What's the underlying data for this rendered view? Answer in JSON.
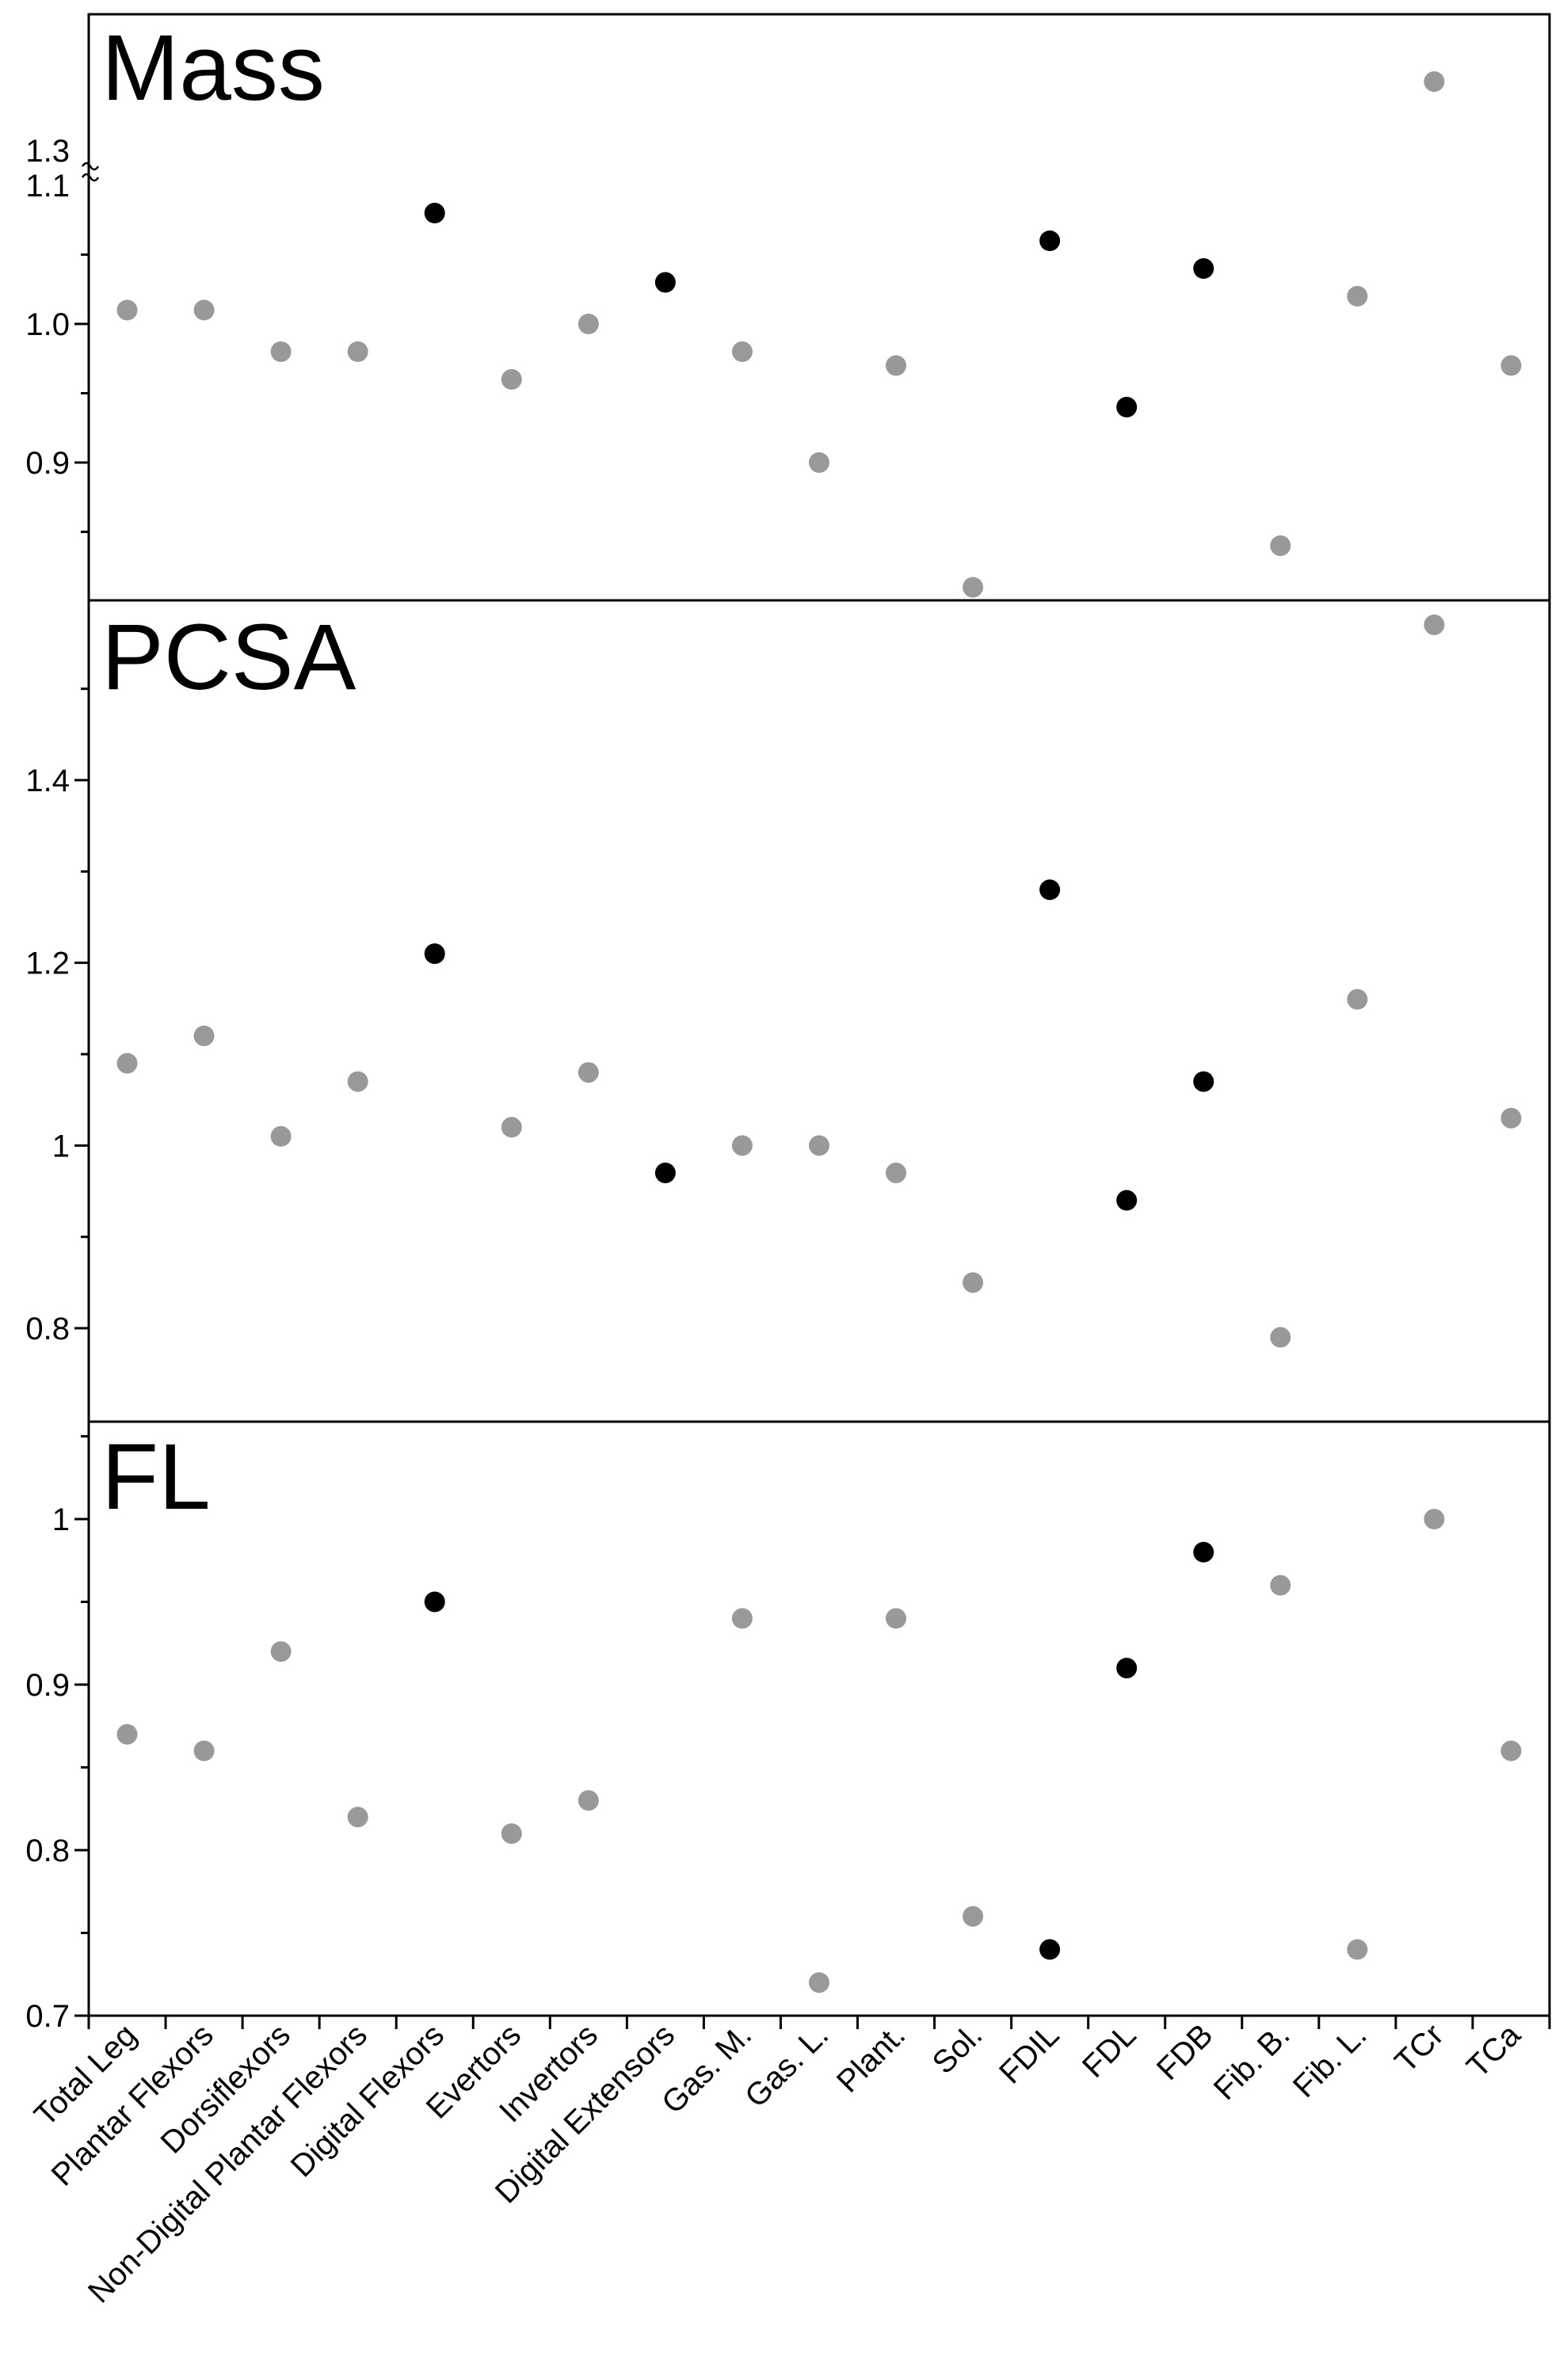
{
  "chart_data": {
    "type": "scatter",
    "categories": [
      "Total Leg",
      "Plantar Flexors",
      "Dorsiflexors",
      "Non-Digital Plantar Flexors",
      "Digital Flexors",
      "Evertors",
      "Invertors",
      "Digital Extensors",
      "Gas. M.",
      "Gas. L.",
      "Plant.",
      "Sol.",
      "FDIL",
      "FDL",
      "FDB",
      "Fib. B.",
      "Fib. L.",
      "TCr",
      "TCa"
    ],
    "colors": {
      "gray": "#999999",
      "black": "#000000"
    },
    "panels": [
      {
        "title": "Mass",
        "axis_break": {
          "lower": "1.1",
          "upper": "1.3"
        },
        "ylim": [
          0.81,
          1.1
        ],
        "ytick_labels": [
          "0.9",
          "1.0",
          "1.1",
          "1.3"
        ],
        "values": [
          1.01,
          1.01,
          0.98,
          0.98,
          1.08,
          0.96,
          1.0,
          1.03,
          0.98,
          0.9,
          0.97,
          0.81,
          1.06,
          0.94,
          1.04,
          0.84,
          1.02,
          1.35,
          0.97
        ],
        "highlight": [
          false,
          false,
          false,
          false,
          true,
          false,
          false,
          true,
          false,
          false,
          false,
          false,
          true,
          true,
          true,
          false,
          false,
          false,
          false
        ]
      },
      {
        "title": "PCSA",
        "ylim": [
          0.7,
          1.6
        ],
        "ytick_labels": [
          "0.8",
          "1",
          "1.2",
          "1.4"
        ],
        "values": [
          1.09,
          1.12,
          1.01,
          1.07,
          1.21,
          1.02,
          1.08,
          0.97,
          1.0,
          1.0,
          0.97,
          0.85,
          1.28,
          0.94,
          1.07,
          0.79,
          1.16,
          1.57,
          1.03
        ],
        "highlight": [
          false,
          false,
          false,
          false,
          true,
          false,
          false,
          true,
          false,
          false,
          false,
          false,
          true,
          true,
          true,
          false,
          false,
          false,
          false
        ]
      },
      {
        "title": "FL",
        "ylim": [
          0.7,
          1.06
        ],
        "ytick_labels": [
          "0.7",
          "0.8",
          "0.9",
          "1"
        ],
        "values": [
          0.87,
          0.86,
          0.92,
          0.82,
          0.95,
          0.81,
          0.83,
          null,
          0.94,
          0.72,
          0.94,
          0.76,
          0.74,
          0.91,
          0.98,
          0.96,
          0.74,
          1.0,
          0.86
        ],
        "highlight": [
          false,
          false,
          false,
          false,
          true,
          false,
          false,
          false,
          false,
          false,
          false,
          false,
          true,
          true,
          true,
          false,
          false,
          false,
          false
        ]
      }
    ]
  }
}
